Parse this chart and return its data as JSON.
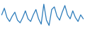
{
  "values": [
    55,
    80,
    45,
    30,
    50,
    65,
    35,
    25,
    45,
    70,
    40,
    30,
    55,
    75,
    40,
    20,
    95,
    35,
    15,
    75,
    85,
    50,
    35,
    65,
    90,
    55,
    40,
    70,
    45,
    30,
    55,
    40
  ],
  "line_color": "#2b7bba",
  "line_width": 0.9,
  "background_color": "#ffffff",
  "ylim_min": 0,
  "ylim_max": 105
}
